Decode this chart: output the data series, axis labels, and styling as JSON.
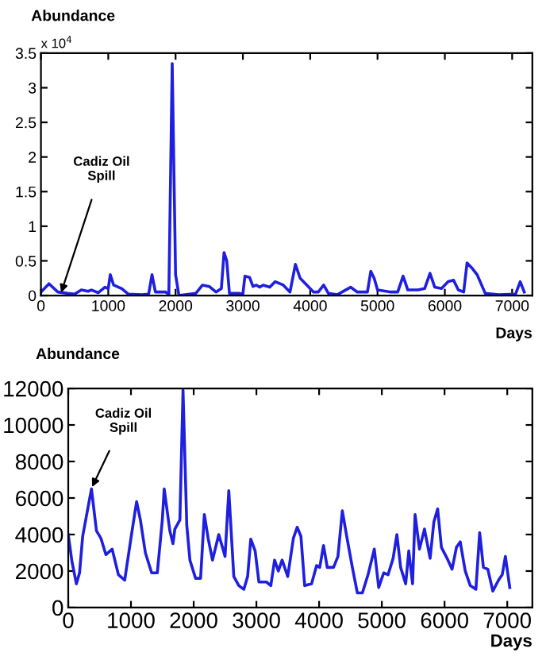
{
  "chart_data": [
    {
      "type": "line",
      "ylabel": "Abundance",
      "xlabel": "Days",
      "color": "#1f1fe0",
      "grid": false,
      "xlim": [
        0,
        7300
      ],
      "xticks": [
        0,
        1000,
        2000,
        3000,
        4000,
        5000,
        6000,
        7000
      ],
      "ylim": [
        0,
        3.5
      ],
      "yticks": [
        0,
        0.5,
        1,
        1.5,
        2,
        2.5,
        3,
        3.5
      ],
      "annotations": [
        "x 10$^{4}$",
        {
          "text": "Cadiz Oil\nSpill",
          "x": 300,
          "y": 0.04
        }
      ],
      "x": [
        0,
        120,
        250,
        400,
        500,
        600,
        700,
        750,
        850,
        950,
        1000,
        1030,
        1080,
        1200,
        1300,
        1500,
        1600,
        1650,
        1700,
        1850,
        1900,
        1950,
        2000,
        2050,
        2300,
        2400,
        2500,
        2600,
        2680,
        2720,
        2760,
        2800,
        2950,
        3000,
        3030,
        3100,
        3150,
        3200,
        3250,
        3300,
        3400,
        3480,
        3600,
        3700,
        3780,
        3850,
        3950,
        4050,
        4120,
        4200,
        4270,
        4400,
        4600,
        4700,
        4850,
        4900,
        4950,
        5000,
        5200,
        5300,
        5380,
        5450,
        5600,
        5700,
        5780,
        5850,
        5950,
        6050,
        6130,
        6200,
        6280,
        6330,
        6400,
        6480,
        6600,
        6800,
        7050,
        7120,
        7180
      ],
      "values": [
        0.05,
        0.17,
        0.05,
        0.03,
        0.02,
        0.08,
        0.06,
        0.08,
        0.04,
        0.12,
        0.1,
        0.3,
        0.15,
        0.1,
        0.02,
        0.01,
        0.02,
        0.3,
        0.05,
        0.05,
        0.02,
        3.35,
        0.3,
        0.0,
        0.03,
        0.15,
        0.13,
        0.05,
        0.1,
        0.62,
        0.5,
        0.03,
        0.03,
        0.02,
        0.28,
        0.26,
        0.13,
        0.15,
        0.12,
        0.15,
        0.12,
        0.2,
        0.15,
        0.05,
        0.45,
        0.25,
        0.15,
        0.05,
        0.05,
        0.15,
        0.03,
        0.01,
        0.12,
        0.05,
        0.05,
        0.35,
        0.25,
        0.08,
        0.05,
        0.05,
        0.28,
        0.08,
        0.08,
        0.1,
        0.32,
        0.12,
        0.1,
        0.2,
        0.22,
        0.08,
        0.05,
        0.47,
        0.4,
        0.3,
        0.03,
        0.01,
        0.02,
        0.2,
        0.05
      ]
    },
    {
      "type": "line",
      "ylabel": "Abundance",
      "xlabel": "Days",
      "color": "#1f1fe0",
      "grid": false,
      "xlim": [
        0,
        7400
      ],
      "xticks": [
        0,
        1000,
        2000,
        3000,
        4000,
        5000,
        6000,
        7000
      ],
      "ylim": [
        0,
        12000
      ],
      "yticks": [
        0,
        2000,
        4000,
        6000,
        8000,
        10000,
        12000
      ],
      "annotations": [
        {
          "text": "Cadiz Oil\nSpill",
          "x": 380,
          "y": 6600
        }
      ],
      "x": [
        0,
        60,
        130,
        180,
        230,
        370,
        450,
        520,
        600,
        700,
        800,
        900,
        1000,
        1090,
        1150,
        1230,
        1330,
        1420,
        1500,
        1530,
        1620,
        1670,
        1700,
        1780,
        1830,
        1890,
        1940,
        2030,
        2110,
        2170,
        2230,
        2300,
        2400,
        2500,
        2560,
        2640,
        2720,
        2800,
        2860,
        2910,
        2980,
        3040,
        3160,
        3230,
        3290,
        3350,
        3410,
        3500,
        3590,
        3650,
        3710,
        3770,
        3880,
        3960,
        4010,
        4070,
        4130,
        4230,
        4300,
        4370,
        4440,
        4530,
        4610,
        4690,
        4780,
        4880,
        4950,
        5030,
        5100,
        5180,
        5240,
        5300,
        5380,
        5430,
        5490,
        5530,
        5600,
        5680,
        5770,
        5830,
        5890,
        5950,
        6040,
        6120,
        6190,
        6250,
        6330,
        6410,
        6500,
        6560,
        6620,
        6690,
        6770,
        6860,
        6920,
        6970,
        7040
      ],
      "values": [
        4000,
        2500,
        1300,
        1900,
        3900,
        6500,
        4200,
        3800,
        2900,
        3200,
        1800,
        1500,
        3800,
        5800,
        4800,
        3000,
        1900,
        1900,
        4800,
        6500,
        4200,
        3500,
        4300,
        4800,
        11900,
        4500,
        2600,
        1600,
        1600,
        5100,
        3800,
        2600,
        4000,
        2800,
        6400,
        1700,
        1200,
        1000,
        1700,
        3750,
        3100,
        1400,
        1400,
        1200,
        2600,
        2000,
        2600,
        1700,
        3800,
        4400,
        3900,
        1200,
        1300,
        2300,
        2200,
        3400,
        2200,
        2200,
        2800,
        5300,
        3900,
        2200,
        800,
        800,
        1800,
        3200,
        1100,
        1900,
        1800,
        2700,
        4000,
        2200,
        1300,
        3100,
        1300,
        5100,
        3200,
        4300,
        2700,
        4700,
        5400,
        3300,
        2700,
        2100,
        3300,
        3600,
        2000,
        1200,
        1000,
        4100,
        2200,
        2100,
        900,
        1500,
        1800,
        2800,
        1100
      ]
    }
  ]
}
